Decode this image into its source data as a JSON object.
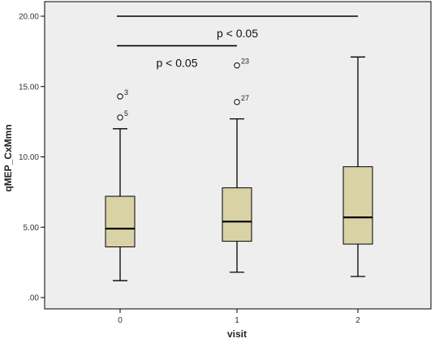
{
  "chart_data": {
    "type": "boxplot",
    "xlabel": "visit",
    "ylabel": "qMEP_CxMmn",
    "ylim": [
      0,
      20
    ],
    "yticks": [
      {
        "value": 0,
        "label": ".00"
      },
      {
        "value": 5,
        "label": "5.00"
      },
      {
        "value": 10,
        "label": "10.00"
      },
      {
        "value": 15,
        "label": "15.00"
      },
      {
        "value": 20,
        "label": "20.00"
      }
    ],
    "categories": [
      "0",
      "1",
      "2"
    ],
    "boxes": [
      {
        "category": "0",
        "whisker_low": 1.2,
        "q1": 3.6,
        "median": 4.9,
        "q3": 7.2,
        "whisker_high": 12.0,
        "outliers": [
          {
            "value": 14.3,
            "label": "3"
          },
          {
            "value": 12.8,
            "label": "5"
          }
        ]
      },
      {
        "category": "1",
        "whisker_low": 1.8,
        "q1": 4.0,
        "median": 5.4,
        "q3": 7.8,
        "whisker_high": 12.7,
        "outliers": [
          {
            "value": 16.5,
            "label": "23"
          },
          {
            "value": 13.9,
            "label": "27"
          }
        ]
      },
      {
        "category": "2",
        "whisker_low": 1.5,
        "q1": 3.8,
        "median": 5.7,
        "q3": 9.3,
        "whisker_high": 17.1,
        "outliers": []
      }
    ],
    "annotations": [
      {
        "from": "0",
        "to": "2",
        "y": 20.0,
        "text": "p < 0.05",
        "text_y": 18.8
      },
      {
        "from": "0",
        "to": "1",
        "y": 17.9,
        "text": "p < 0.05",
        "text_y": 16.7
      }
    ],
    "colors": {
      "plot_bg": "#eeeeee",
      "box_fill": "#d9d2a5",
      "stroke": "#000000"
    }
  }
}
